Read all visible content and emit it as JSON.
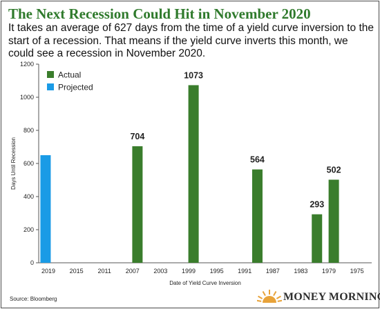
{
  "header": {
    "title": "The Next Recession Could Hit in November 2020",
    "subtitle": "It takes an average of 627 days from the time of a yield curve inversion to the start of a recession. That means if the yield curve inverts this month, we could see a recession in November 2020."
  },
  "footer": {
    "source": "Source: Bloomberg",
    "logo_text": "MONEY MORNING"
  },
  "colors": {
    "actual": "#3a7d2c",
    "projected": "#1a9be6",
    "title": "#2f7a2c",
    "logo_sun": "#e8a33a"
  },
  "chart_data": {
    "type": "bar",
    "title": "",
    "xlabel": "Date of Yield Curve Inversion",
    "ylabel": "Days Until Recession",
    "ylim": [
      0,
      1200
    ],
    "yticks": [
      0,
      200,
      400,
      600,
      800,
      1000,
      1200
    ],
    "grid": false,
    "legend_placement": "top-left",
    "categories": [
      "2019",
      "2015",
      "2011",
      "2007",
      "2003",
      "1999",
      "1995",
      "1991",
      "1987",
      "1983",
      "1979",
      "1975"
    ],
    "series": [
      {
        "name": "Actual",
        "color": "#3a7d2c",
        "label_values": true,
        "points": [
          {
            "x": 2006.3,
            "value": 704
          },
          {
            "x": 1998.3,
            "value": 1073
          },
          {
            "x": 1989.2,
            "value": 564
          },
          {
            "x": 1980.7,
            "value": 293
          },
          {
            "x": 1978.3,
            "value": 502
          }
        ]
      },
      {
        "name": "Projected",
        "color": "#1a9be6",
        "label_values": false,
        "points": [
          {
            "x": 2019.4,
            "value": 650
          }
        ]
      }
    ]
  }
}
